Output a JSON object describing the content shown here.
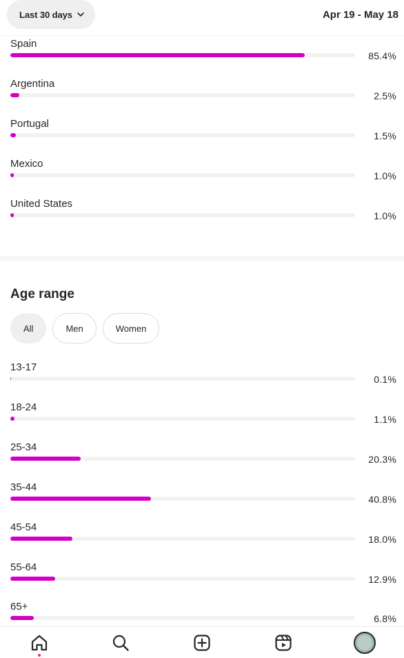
{
  "header": {
    "range_label": "Last 30 days",
    "date_range": "Apr 19 - May 18"
  },
  "countries": [
    {
      "label": "Spain",
      "value": 85.4,
      "pct": "85.4%"
    },
    {
      "label": "Argentina",
      "value": 2.5,
      "pct": "2.5%"
    },
    {
      "label": "Portugal",
      "value": 1.5,
      "pct": "1.5%"
    },
    {
      "label": "Mexico",
      "value": 1.0,
      "pct": "1.0%"
    },
    {
      "label": "United States",
      "value": 1.0,
      "pct": "1.0%"
    }
  ],
  "age": {
    "title": "Age range",
    "filters": [
      "All",
      "Men",
      "Women"
    ],
    "active_filter": "All",
    "ranges": [
      {
        "label": "13-17",
        "value": 0.1,
        "pct": "0.1%"
      },
      {
        "label": "18-24",
        "value": 1.1,
        "pct": "1.1%"
      },
      {
        "label": "25-34",
        "value": 20.3,
        "pct": "20.3%"
      },
      {
        "label": "35-44",
        "value": 40.8,
        "pct": "40.8%"
      },
      {
        "label": "45-54",
        "value": 18.0,
        "pct": "18.0%"
      },
      {
        "label": "55-64",
        "value": 12.9,
        "pct": "12.9%"
      },
      {
        "label": "65+",
        "value": 6.8,
        "pct": "6.8%"
      }
    ]
  },
  "colors": {
    "accent": "#d300c5",
    "track": "#f2f2f2"
  },
  "nav": [
    "home-icon",
    "search-icon",
    "create-icon",
    "reels-icon",
    "profile-avatar"
  ]
}
